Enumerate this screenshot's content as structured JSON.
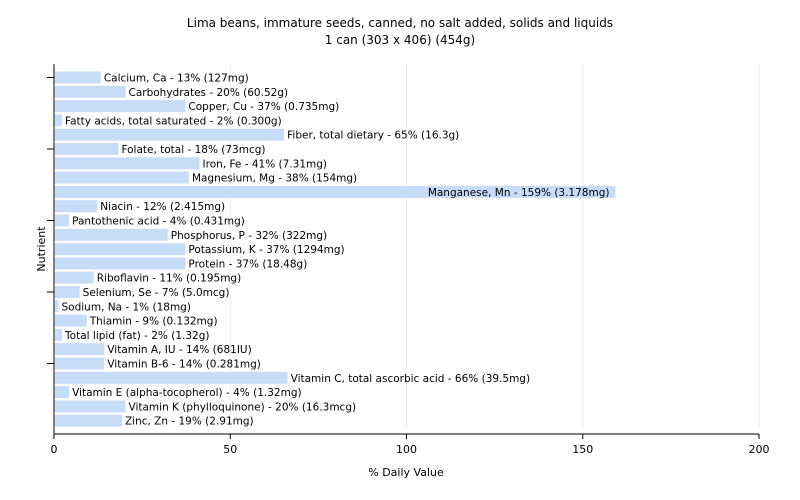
{
  "chart_data": {
    "type": "bar",
    "orientation": "horizontal",
    "title": "Lima beans, immature seeds, canned, no salt added, solids and liquids",
    "subtitle": "1 can (303 x 406) (454g)",
    "xlabel": "% Daily Value",
    "ylabel": "Nutrient",
    "xlim": [
      0,
      200
    ],
    "xticks": [
      0,
      50,
      100,
      150,
      200
    ],
    "grid": "vertical",
    "bar_color": "#c6dcf7",
    "categories": [
      "Calcium, Ca",
      "Carbohydrates",
      "Copper, Cu",
      "Fatty acids, total saturated",
      "Fiber, total dietary",
      "Folate, total",
      "Iron, Fe",
      "Magnesium, Mg",
      "Manganese, Mn",
      "Niacin",
      "Pantothenic acid",
      "Phosphorus, P",
      "Potassium, K",
      "Protein",
      "Riboflavin",
      "Selenium, Se",
      "Sodium, Na",
      "Thiamin",
      "Total lipid (fat)",
      "Vitamin A, IU",
      "Vitamin B-6",
      "Vitamin C, total ascorbic acid",
      "Vitamin E (alpha-tocopherol)",
      "Vitamin K (phylloquinone)",
      "Zinc, Zn"
    ],
    "values": [
      13,
      20,
      37,
      2,
      65,
      18,
      41,
      38,
      159,
      12,
      4,
      32,
      37,
      37,
      11,
      7,
      1,
      9,
      2,
      14,
      14,
      66,
      4,
      20,
      19
    ],
    "labels": [
      "Calcium, Ca - 13% (127mg)",
      "Carbohydrates - 20% (60.52g)",
      "Copper, Cu - 37% (0.735mg)",
      "Fatty acids, total saturated - 2% (0.300g)",
      "Fiber, total dietary - 65% (16.3g)",
      "Folate, total - 18% (73mcg)",
      "Iron, Fe - 41% (7.31mg)",
      "Magnesium, Mg - 38% (154mg)",
      "Manganese, Mn - 159% (3.178mg)",
      "Niacin - 12% (2.415mg)",
      "Pantothenic acid - 4% (0.431mg)",
      "Phosphorus, P - 32% (322mg)",
      "Potassium, K - 37% (1294mg)",
      "Protein - 37% (18.48g)",
      "Riboflavin - 11% (0.195mg)",
      "Selenium, Se - 7% (5.0mcg)",
      "Sodium, Na - 1% (18mg)",
      "Thiamin - 9% (0.132mg)",
      "Total lipid (fat) - 2% (1.32g)",
      "Vitamin A, IU - 14% (681IU)",
      "Vitamin B-6 - 14% (0.281mg)",
      "Vitamin C, total ascorbic acid - 66% (39.5mg)",
      "Vitamin E (alpha-tocopherol) - 4% (1.32mg)",
      "Vitamin K (phylloquinone) - 20% (16.3mcg)",
      "Zinc, Zn - 19% (2.91mg)"
    ]
  }
}
